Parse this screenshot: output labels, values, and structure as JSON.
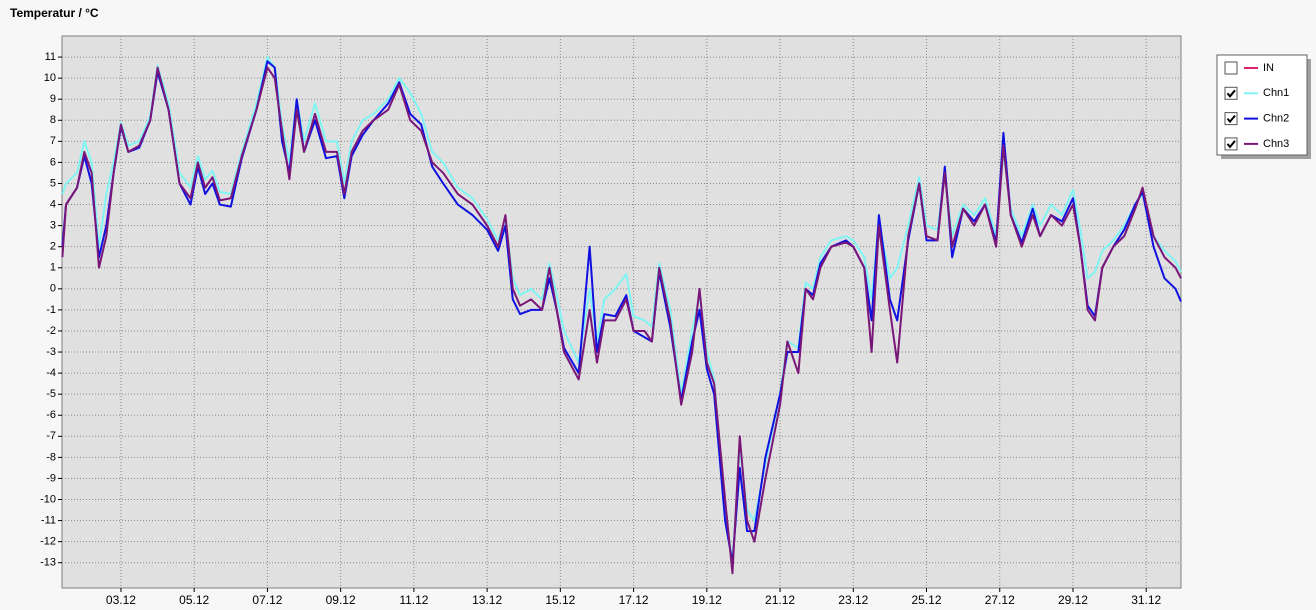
{
  "chart_data": {
    "type": "line",
    "title": "Temperatur / °C",
    "xlim": [
      1.39,
      31.95
    ],
    "ylim": [
      -14.2,
      12
    ],
    "xticks": [
      {
        "value": 3,
        "label": "03.12"
      },
      {
        "value": 5,
        "label": "05.12"
      },
      {
        "value": 7,
        "label": "07.12"
      },
      {
        "value": 9,
        "label": "09.12"
      },
      {
        "value": 11,
        "label": "11.12"
      },
      {
        "value": 13,
        "label": "13.12"
      },
      {
        "value": 15,
        "label": "15.12"
      },
      {
        "value": 17,
        "label": "17.12"
      },
      {
        "value": 19,
        "label": "19.12"
      },
      {
        "value": 21,
        "label": "21.12"
      },
      {
        "value": 23,
        "label": "23.12"
      },
      {
        "value": 25,
        "label": "25.12"
      },
      {
        "value": 27,
        "label": "27.12"
      },
      {
        "value": 29,
        "label": "29.12"
      },
      {
        "value": 31,
        "label": "31.12"
      }
    ],
    "yticks": [
      11,
      10,
      9,
      8,
      7,
      6,
      5,
      4,
      3,
      2,
      1,
      0,
      -1,
      -2,
      -3,
      -4,
      -5,
      -6,
      -7,
      -8,
      -9,
      -10,
      -11,
      -12,
      -13
    ],
    "grid": true,
    "legend": "top-right",
    "x": [
      1.4,
      1.5,
      1.8,
      2.0,
      2.2,
      2.4,
      2.6,
      2.8,
      3.0,
      3.2,
      3.5,
      3.8,
      4.0,
      4.3,
      4.6,
      4.9,
      5.1,
      5.3,
      5.5,
      5.7,
      6.0,
      6.3,
      6.7,
      7.0,
      7.2,
      7.4,
      7.6,
      7.8,
      8.0,
      8.3,
      8.6,
      8.9,
      9.1,
      9.3,
      9.6,
      9.9,
      10.3,
      10.6,
      10.9,
      11.2,
      11.5,
      11.8,
      12.2,
      12.6,
      13.0,
      13.3,
      13.5,
      13.7,
      13.9,
      14.2,
      14.5,
      14.7,
      14.9,
      15.1,
      15.5,
      15.8,
      16.0,
      16.2,
      16.5,
      16.8,
      17.0,
      17.3,
      17.5,
      17.7,
      18.0,
      18.3,
      18.6,
      18.8,
      19.0,
      19.2,
      19.5,
      19.7,
      19.9,
      20.1,
      20.3,
      20.6,
      21.0,
      21.2,
      21.5,
      21.7,
      21.9,
      22.1,
      22.4,
      22.8,
      23.0,
      23.3,
      23.5,
      23.7,
      24.0,
      24.2,
      24.5,
      24.8,
      25.0,
      25.3,
      25.5,
      25.7,
      26.0,
      26.3,
      26.6,
      26.9,
      27.1,
      27.3,
      27.6,
      27.9,
      28.1,
      28.4,
      28.7,
      29.0,
      29.2,
      29.4,
      29.6,
      29.8,
      30.1,
      30.4,
      30.7,
      30.9,
      31.2,
      31.5,
      31.8,
      31.95
    ],
    "series": [
      {
        "name": "IN",
        "color": "#e0206a",
        "checked": false,
        "values": null
      },
      {
        "name": "Chn1",
        "color": "#80f4f4",
        "checked": true,
        "values": [
          4.5,
          5.0,
          5.5,
          7.0,
          6.0,
          2.0,
          4.5,
          6.0,
          7.9,
          6.8,
          7.0,
          8.2,
          10.6,
          8.8,
          5.5,
          4.8,
          6.3,
          5.2,
          5.6,
          4.6,
          4.5,
          6.5,
          8.8,
          11.0,
          10.5,
          7.8,
          6.0,
          9.0,
          7.0,
          8.8,
          7.0,
          7.0,
          5.0,
          7.0,
          8.0,
          8.3,
          9.0,
          10.0,
          9.3,
          8.3,
          6.5,
          6.0,
          4.8,
          4.3,
          3.3,
          2.3,
          3.3,
          0.5,
          -0.3,
          0.0,
          -0.5,
          1.2,
          -0.3,
          -2.0,
          -3.5,
          0.0,
          -2.5,
          -0.5,
          0.0,
          0.7,
          -1.3,
          -1.5,
          -1.8,
          1.2,
          -1.0,
          -5.0,
          -2.0,
          -0.3,
          -3.0,
          -4.3,
          -10.5,
          -13.0,
          -7.5,
          -10.5,
          -11.0,
          -8.3,
          -5.0,
          -2.5,
          -2.8,
          0.3,
          0.0,
          1.5,
          2.3,
          2.5,
          2.3,
          1.5,
          -0.5,
          3.2,
          0.5,
          1.0,
          3.0,
          5.3,
          3.0,
          2.8,
          5.5,
          2.5,
          4.0,
          3.5,
          4.3,
          2.5,
          6.5,
          3.8,
          2.5,
          4.0,
          3.0,
          4.0,
          3.5,
          4.7,
          2.8,
          0.5,
          0.8,
          1.8,
          2.3,
          3.0,
          4.0,
          4.5,
          2.5,
          1.8,
          1.3,
          0.8
        ]
      },
      {
        "name": "Chn2",
        "color": "#1010e0",
        "checked": true,
        "values": [
          2.0,
          4.0,
          4.8,
          6.3,
          5.0,
          1.5,
          3.0,
          5.5,
          7.7,
          6.5,
          6.7,
          8.0,
          10.3,
          8.5,
          5.0,
          4.0,
          5.8,
          4.5,
          5.0,
          4.0,
          3.9,
          6.2,
          8.5,
          10.8,
          10.5,
          7.0,
          5.5,
          9.0,
          6.5,
          8.0,
          6.2,
          6.3,
          4.3,
          6.3,
          7.3,
          8.0,
          8.8,
          9.8,
          8.3,
          7.8,
          5.8,
          5.0,
          4.0,
          3.5,
          2.8,
          1.8,
          3.0,
          -0.5,
          -1.2,
          -1.0,
          -1.0,
          0.5,
          -1.0,
          -2.8,
          -4.0,
          2.0,
          -3.0,
          -1.2,
          -1.3,
          -0.3,
          -2.0,
          -2.3,
          -2.5,
          0.8,
          -1.8,
          -5.3,
          -2.5,
          -1.0,
          -3.8,
          -5.0,
          -11.0,
          -13.0,
          -8.5,
          -11.5,
          -11.5,
          -8.0,
          -5.0,
          -3.0,
          -3.0,
          0.0,
          -0.3,
          1.2,
          2.0,
          2.3,
          2.0,
          1.0,
          -1.5,
          3.5,
          -0.5,
          -1.5,
          2.3,
          5.0,
          2.3,
          2.3,
          5.8,
          1.5,
          3.8,
          3.2,
          4.0,
          2.2,
          7.4,
          3.5,
          2.2,
          3.8,
          2.5,
          3.5,
          3.2,
          4.3,
          2.0,
          -0.8,
          -1.3,
          1.0,
          2.0,
          2.8,
          4.0,
          4.6,
          2.0,
          0.5,
          0.0,
          -0.6
        ]
      },
      {
        "name": "Chn3",
        "color": "#7a1678",
        "checked": true,
        "values": [
          1.5,
          4.0,
          4.8,
          6.5,
          5.5,
          1.0,
          2.5,
          5.5,
          7.8,
          6.5,
          6.8,
          8.0,
          10.5,
          8.5,
          5.0,
          4.3,
          6.0,
          4.8,
          5.3,
          4.2,
          4.3,
          6.3,
          8.5,
          10.5,
          10.0,
          7.5,
          5.2,
          8.5,
          6.5,
          8.3,
          6.5,
          6.5,
          4.5,
          6.5,
          7.5,
          8.0,
          8.5,
          9.7,
          8.0,
          7.5,
          6.0,
          5.5,
          4.5,
          4.0,
          3.0,
          2.0,
          3.5,
          0.0,
          -0.8,
          -0.5,
          -1.0,
          1.0,
          -1.0,
          -3.0,
          -4.3,
          -1.0,
          -3.5,
          -1.5,
          -1.5,
          -0.5,
          -2.0,
          -2.0,
          -2.5,
          1.0,
          -1.5,
          -5.5,
          -3.0,
          0.0,
          -3.5,
          -4.5,
          -10.0,
          -13.5,
          -7.0,
          -11.0,
          -12.0,
          -9.0,
          -5.5,
          -2.5,
          -4.0,
          0.0,
          -0.5,
          1.0,
          2.0,
          2.2,
          2.0,
          1.0,
          -3.0,
          3.0,
          -1.0,
          -3.5,
          2.5,
          5.0,
          2.5,
          2.3,
          5.5,
          2.0,
          3.8,
          3.0,
          4.0,
          2.0,
          6.8,
          3.5,
          2.0,
          3.5,
          2.5,
          3.5,
          3.0,
          4.0,
          2.0,
          -1.0,
          -1.5,
          1.0,
          2.0,
          2.5,
          3.8,
          4.8,
          2.5,
          1.5,
          1.0,
          0.5
        ]
      }
    ]
  }
}
